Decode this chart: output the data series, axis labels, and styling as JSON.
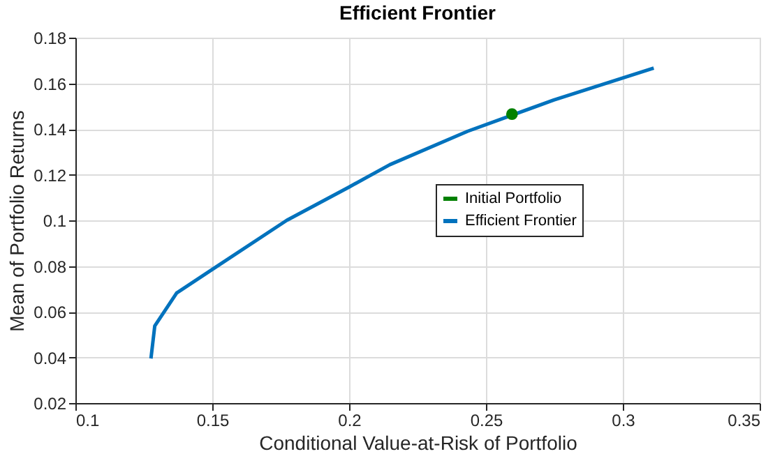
{
  "chart_data": {
    "type": "line",
    "title": "Efficient  Frontier",
    "xlabel": "Conditional Value-at-Risk of Portfolio",
    "ylabel": "Mean of Portfolio Returns",
    "series": [
      {
        "name": "Initial Portfolio",
        "type": "scatter",
        "color": "#008000",
        "marker": "circle",
        "x": [
          0.2595
        ],
        "values": [
          0.1465
        ]
      },
      {
        "name": "Efficient Frontier",
        "color": "#0072bd",
        "marker": "none",
        "line_style": "solid",
        "x": [
          0.1276,
          0.129,
          0.137,
          0.15,
          0.1772,
          0.2,
          0.2149,
          0.2433,
          0.2748,
          0.3113
        ],
        "values": [
          0.0395,
          0.0538,
          0.0682,
          0.0785,
          0.1,
          0.1146,
          0.1244,
          0.139,
          0.1527,
          0.1667
        ]
      }
    ],
    "xlim": [
      0.1,
      0.35
    ],
    "xticks": [
      0.1,
      0.15,
      0.2,
      0.25,
      0.3,
      0.35
    ],
    "ylim": [
      0.02,
      0.18
    ],
    "yticks": [
      0.02,
      0.04,
      0.06,
      0.08,
      0.1,
      0.12,
      0.14,
      0.16,
      0.18
    ],
    "grid": true,
    "legend": "right"
  }
}
